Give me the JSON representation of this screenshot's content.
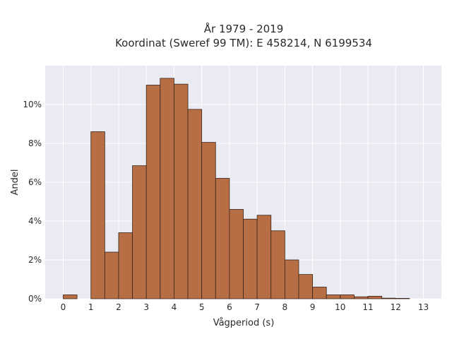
{
  "chart_data": {
    "type": "bar",
    "title_line1": "År 1979 - 2019",
    "title_line2": "Koordinat (Sweref 99 TM): E 458214, N 6199534",
    "xlabel": "Vågperiod (s)",
    "ylabel": "Andel",
    "bin_width": 0.5,
    "bins": [
      {
        "x0": 0.0,
        "value": 0.002
      },
      {
        "x0": 1.0,
        "value": 0.086
      },
      {
        "x0": 1.5,
        "value": 0.024
      },
      {
        "x0": 2.0,
        "value": 0.034
      },
      {
        "x0": 2.5,
        "value": 0.0685
      },
      {
        "x0": 3.0,
        "value": 0.11
      },
      {
        "x0": 3.5,
        "value": 0.1135
      },
      {
        "x0": 4.0,
        "value": 0.1105
      },
      {
        "x0": 4.5,
        "value": 0.0975
      },
      {
        "x0": 5.0,
        "value": 0.0805
      },
      {
        "x0": 5.5,
        "value": 0.062
      },
      {
        "x0": 6.0,
        "value": 0.046
      },
      {
        "x0": 6.5,
        "value": 0.041
      },
      {
        "x0": 7.0,
        "value": 0.043
      },
      {
        "x0": 7.5,
        "value": 0.035
      },
      {
        "x0": 8.0,
        "value": 0.02
      },
      {
        "x0": 8.5,
        "value": 0.0125
      },
      {
        "x0": 9.0,
        "value": 0.006
      },
      {
        "x0": 9.5,
        "value": 0.002
      },
      {
        "x0": 10.0,
        "value": 0.002
      },
      {
        "x0": 10.5,
        "value": 0.001
      },
      {
        "x0": 11.0,
        "value": 0.0013
      },
      {
        "x0": 11.5,
        "value": 0.0003
      },
      {
        "x0": 12.0,
        "value": 0.0002
      }
    ],
    "xlim": [
      -0.65,
      13.65
    ],
    "ylim": [
      0,
      0.12
    ],
    "xticks": [
      0,
      1,
      2,
      3,
      4,
      5,
      6,
      7,
      8,
      9,
      10,
      11,
      12,
      13
    ],
    "xtick_labels": [
      "0",
      "1",
      "2",
      "3",
      "4",
      "5",
      "6",
      "7",
      "8",
      "9",
      "10",
      "11",
      "12",
      "13"
    ],
    "yticks": [
      0,
      0.02,
      0.04,
      0.06,
      0.08,
      0.1
    ],
    "ytick_labels": [
      "0%",
      "2%",
      "4%",
      "6%",
      "8%",
      "10%"
    ],
    "grid": true,
    "colors": {
      "bar_fill": "#b86e45",
      "bar_edge": "#3a2418",
      "plot_bg": "#eaeaf2",
      "grid": "#ffffff"
    }
  }
}
